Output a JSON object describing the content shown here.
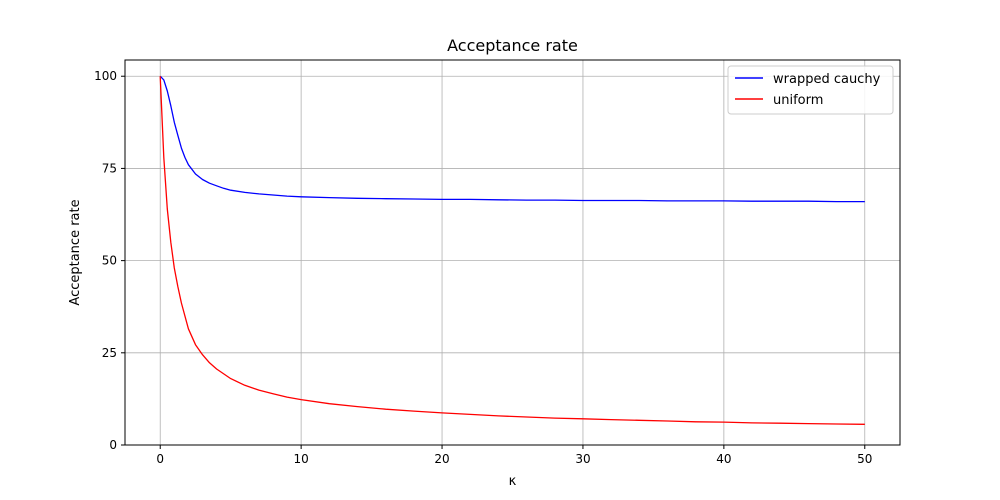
{
  "chart_data": {
    "type": "line",
    "title": "Acceptance rate",
    "xlabel": "κ",
    "ylabel": "Acceptance rate",
    "xlim": [
      -2.5,
      52.5
    ],
    "ylim": [
      0,
      104.4
    ],
    "xticks": [
      0,
      10,
      20,
      30,
      40,
      50
    ],
    "yticks": [
      0,
      25,
      50,
      75,
      100
    ],
    "grid": true,
    "legend_position": "top-right",
    "series": [
      {
        "name": "wrapped cauchy",
        "color": "#0000ff",
        "x": [
          0,
          0.25,
          0.5,
          0.75,
          1,
          1.25,
          1.5,
          1.75,
          2,
          2.5,
          3,
          3.5,
          4,
          4.5,
          5,
          6,
          7,
          8,
          9,
          10,
          12,
          14,
          16,
          18,
          20,
          22,
          24,
          26,
          28,
          30,
          32,
          34,
          36,
          38,
          40,
          42,
          44,
          46,
          48,
          50
        ],
        "y": [
          100,
          99,
          96,
          92,
          87.5,
          84,
          80.5,
          78,
          76,
          73.5,
          72,
          71,
          70.3,
          69.6,
          69.1,
          68.5,
          68.1,
          67.8,
          67.5,
          67.3,
          67.1,
          66.9,
          66.8,
          66.7,
          66.6,
          66.6,
          66.5,
          66.4,
          66.4,
          66.3,
          66.3,
          66.3,
          66.2,
          66.2,
          66.2,
          66.1,
          66.1,
          66.1,
          66.0,
          66.0
        ]
      },
      {
        "name": "uniform",
        "color": "#ff0000",
        "x": [
          0,
          0.25,
          0.5,
          0.75,
          1,
          1.25,
          1.5,
          2,
          2.5,
          3,
          3.5,
          4,
          5,
          6,
          7,
          8,
          9,
          10,
          12,
          14,
          16,
          18,
          20,
          22,
          24,
          26,
          28,
          30,
          32,
          34,
          36,
          38,
          40,
          42,
          44,
          46,
          48,
          50
        ],
        "y": [
          100,
          78,
          64,
          55,
          48,
          43,
          38.5,
          31.5,
          27.2,
          24.5,
          22.3,
          20.6,
          18,
          16.2,
          14.9,
          13.9,
          13,
          12.3,
          11.2,
          10.4,
          9.7,
          9.2,
          8.7,
          8.3,
          7.9,
          7.6,
          7.3,
          7.1,
          6.9,
          6.7,
          6.5,
          6.3,
          6.2,
          6.0,
          5.9,
          5.8,
          5.7,
          5.6
        ]
      }
    ]
  }
}
